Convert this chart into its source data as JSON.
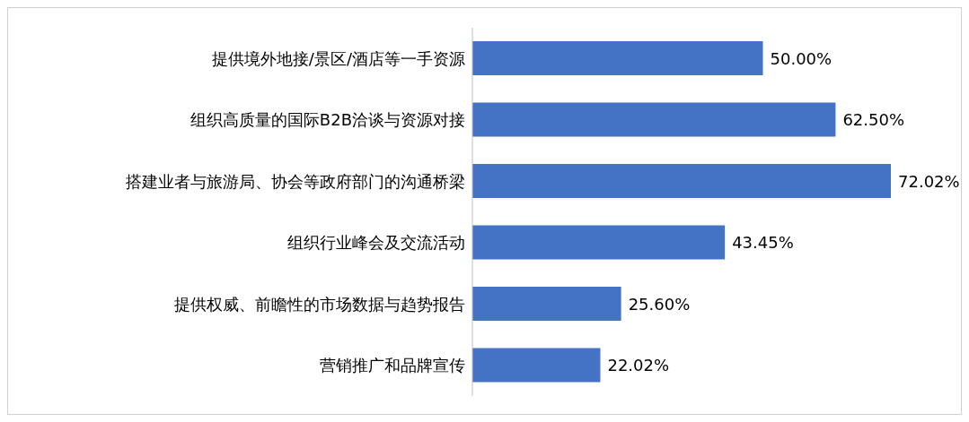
{
  "chart_data": {
    "type": "bar",
    "orientation": "horizontal",
    "categories": [
      "提供境外地接/景区/酒店等一手资源",
      "组织高质量的国际B2B洽谈与资源对接",
      "搭建业者与旅游局、协会等政府部门的沟通桥梁",
      "组织行业峰会及交流活动",
      "提供权威、前瞻性的市场数据与趋势报告",
      "营销推广和品牌宣传"
    ],
    "values": [
      50,
      62.5,
      72.02,
      43.45,
      25.6,
      22.02
    ],
    "value_labels": [
      "50.00%",
      "62.50%",
      "72.02%",
      "43.45%",
      "25.60%",
      "22.02%"
    ],
    "color": "#4472c4",
    "grid": false,
    "legend": false
  }
}
